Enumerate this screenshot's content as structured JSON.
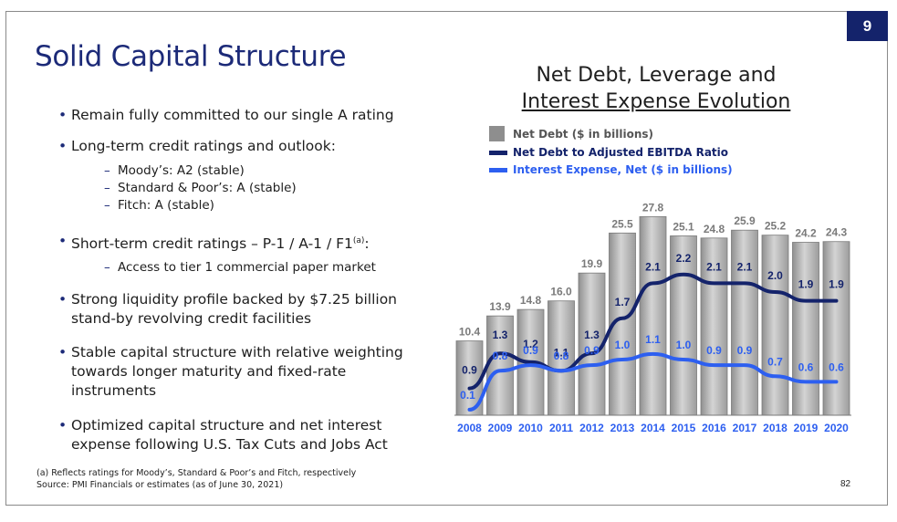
{
  "page_badge": "9",
  "title": "Solid Capital Structure",
  "bullets": [
    {
      "text": "Remain fully committed to our single A rating"
    },
    {
      "text": "Long-term credit ratings and outlook:",
      "sub": [
        "Moody’s: A2 (stable)",
        "Standard & Poor’s: A (stable)",
        "Fitch: A (stable)"
      ]
    },
    {
      "text_before_sup": "Short-term credit ratings – P-1 / A-1 / F1",
      "sup": "(a)",
      "text_after_sup": ":",
      "sub": [
        "Access to tier 1 commercial paper market"
      ]
    },
    {
      "lines": [
        "Strong liquidity profile backed by $7.25 billion",
        "stand-by revolving credit facilities"
      ]
    },
    {
      "lines": [
        "Stable capital structure with relative weighting",
        "towards longer maturity and fixed-rate",
        "instruments"
      ]
    },
    {
      "lines": [
        "Optimized capital structure and net interest",
        "expense following U.S. Tax Cuts and Jobs Act"
      ]
    }
  ],
  "footnote": [
    "(a)  Reflects ratings for Moody’s, Standard & Poor’s and Fitch, respectively",
    "Source: PMI Financials or estimates (as of June 30, 2021)"
  ],
  "page_number": "82",
  "chart_data": {
    "type": "bar",
    "title_line1": "Net Debt, Leverage and",
    "title_line2": "Interest Expense Evolution",
    "categories": [
      "2008",
      "2009",
      "2010",
      "2011",
      "2012",
      "2013",
      "2014",
      "2015",
      "2016",
      "2017",
      "2018",
      "2019",
      "2020"
    ],
    "series": [
      {
        "name": "Net Debt ($ in billions)",
        "kind": "bar",
        "color": "#a6a6a6",
        "values": [
          10.4,
          13.9,
          14.8,
          16.0,
          19.9,
          25.5,
          27.8,
          25.1,
          24.8,
          25.9,
          25.2,
          24.2,
          24.3
        ],
        "labels": [
          "10.4",
          "13.9",
          "14.8",
          "16.0",
          "19.9",
          "25.5",
          "27.8",
          "25.1",
          "24.8",
          "25.9",
          "25.2",
          "24.2",
          "24.3"
        ]
      },
      {
        "name": "Net Debt to Adjusted EBITDA Ratio",
        "kind": "line",
        "color": "#14236b",
        "values": [
          0.9,
          1.3,
          1.2,
          1.1,
          1.3,
          1.7,
          2.1,
          2.2,
          2.1,
          2.1,
          2.0,
          1.9,
          1.9
        ],
        "labels": [
          "0.9",
          "1.3",
          "1.2",
          "1.1",
          "1.3",
          "1.7",
          "2.1",
          "2.2",
          "2.1",
          "2.1",
          "2.0",
          "1.9",
          "1.9"
        ]
      },
      {
        "name": "Interest Expense, Net ($ in billions)",
        "kind": "line",
        "color": "#2d5ff0",
        "values": [
          0.1,
          0.8,
          0.9,
          0.8,
          0.9,
          1.0,
          1.1,
          1.0,
          0.9,
          0.9,
          0.7,
          0.6,
          0.6
        ],
        "labels": [
          "0.1",
          "0.8",
          "0.9",
          "0.8",
          "0.9",
          "1.0",
          "1.1",
          "1.0",
          "0.9",
          "0.9",
          "0.7",
          "0.6",
          "0.6"
        ]
      }
    ],
    "ylim": [
      0,
      32
    ],
    "grid": false,
    "legend_placement": "top-left"
  }
}
